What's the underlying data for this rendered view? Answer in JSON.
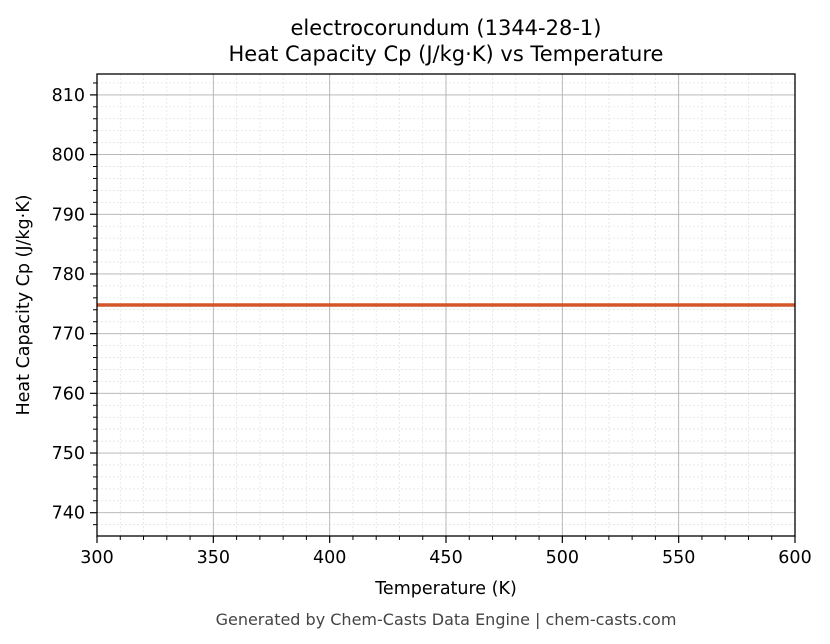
{
  "chart_data": {
    "type": "line",
    "title": "electrocorundum (1344-28-1)",
    "subtitle": "Heat Capacity Cp (J/kg·K) vs Temperature",
    "xlabel": "Temperature (K)",
    "ylabel": "Heat Capacity Cp (J/kg·K)",
    "xlim": [
      300,
      600
    ],
    "ylim": [
      736.1,
      813.5
    ],
    "x_ticks": [
      300,
      350,
      400,
      450,
      500,
      550,
      600
    ],
    "y_ticks": [
      740,
      750,
      760,
      770,
      780,
      790,
      800,
      810
    ],
    "grid": true,
    "legend": null,
    "series": [
      {
        "name": "Cp",
        "color": "#d2562a",
        "x": [
          300,
          350,
          400,
          450,
          500,
          550,
          600
        ],
        "values": [
          774.8,
          774.8,
          774.8,
          774.8,
          774.8,
          774.8,
          774.8
        ]
      }
    ]
  },
  "footer": "Generated by Chem-Casts Data Engine | chem-casts.com",
  "colors": {
    "line": "#d2562a",
    "grid_major": "#b0b0b0",
    "grid_minor": "#e0e0e0",
    "footer_text": "#444444"
  }
}
